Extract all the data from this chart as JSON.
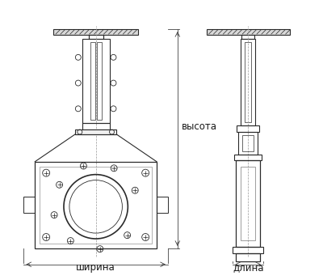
{
  "bg_color": "#ffffff",
  "line_color": "#2a2a2a",
  "dim_line_color": "#444444",
  "text_color": "#1a1a1a",
  "label_shirina": "ширина",
  "label_vysota": "высота",
  "label_dlina": "длина",
  "fig_width": 4.0,
  "fig_height": 3.46,
  "dpi": 100
}
